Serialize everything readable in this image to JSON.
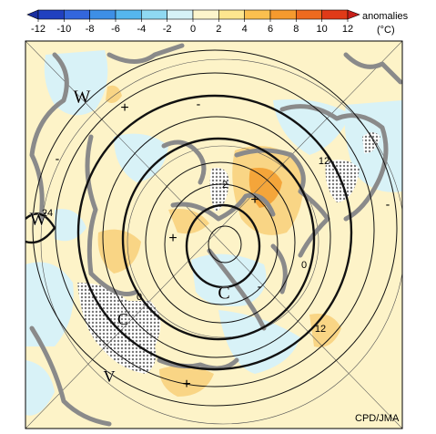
{
  "colorbar": {
    "label": "anomalies",
    "unit": "(°C)",
    "ticks": [
      -12,
      -10,
      -8,
      -6,
      -4,
      -2,
      0,
      2,
      4,
      6,
      8,
      10,
      12
    ],
    "colors": [
      "#1a2fa0",
      "#2040c0",
      "#3366dd",
      "#3d8fe6",
      "#55b6ee",
      "#8fd9f2",
      "#d6f2f7",
      "#fdf5cc",
      "#fde68f",
      "#fbc04f",
      "#f59a2e",
      "#ee6a1f",
      "#e03a18",
      "#c8201a"
    ]
  },
  "map": {
    "labels": [
      "W",
      "W",
      "C",
      "V",
      "C",
      "12",
      "2",
      "0",
      "12",
      "24",
      "0",
      "-",
      "-",
      "-",
      "-",
      "+",
      "+",
      "+",
      "+"
    ]
  },
  "credit": "CPD/JMA"
}
